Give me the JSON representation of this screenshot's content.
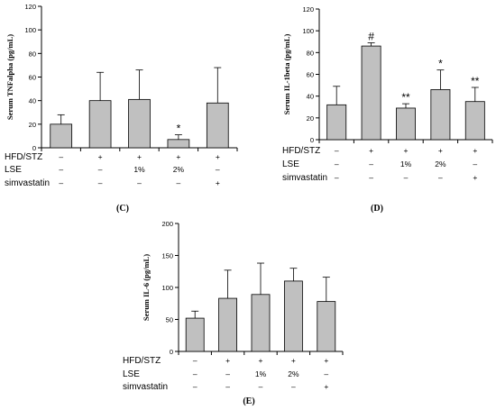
{
  "legend_rows": [
    {
      "label": "HFD/STZ",
      "cells": [
        "–",
        "+",
        "+",
        "+",
        "+"
      ]
    },
    {
      "label": "LSE",
      "cells": [
        "–",
        "–",
        "1%",
        "2%",
        "–"
      ]
    },
    {
      "label": "simvastatin",
      "cells": [
        "–",
        "–",
        "–",
        "–",
        "+"
      ]
    }
  ],
  "colors": {
    "bar_fill": "#c0c0c0",
    "axis": "#000000"
  },
  "chart_data": [
    {
      "type": "bar",
      "panel_label": "(C)",
      "ylabel": "Serum TNFalpha (pg/mL)",
      "ylim": [
        0,
        120
      ],
      "yticks": [
        0,
        20,
        40,
        60,
        80,
        100,
        120
      ],
      "values": [
        20,
        40,
        41,
        7,
        38
      ],
      "errors": [
        8,
        24,
        25,
        4,
        30
      ],
      "annotations": [
        "",
        "",
        "",
        "*",
        ""
      ]
    },
    {
      "type": "bar",
      "panel_label": "(D)",
      "ylabel": "Serum IL-1beta (pg/mL)",
      "ylim": [
        0,
        120
      ],
      "yticks": [
        0,
        20,
        40,
        60,
        80,
        100,
        120
      ],
      "values": [
        32,
        86,
        29,
        46,
        35
      ],
      "errors": [
        17,
        3,
        4,
        18,
        13
      ],
      "annotations": [
        "",
        "#",
        "**",
        "*",
        "**"
      ]
    },
    {
      "type": "bar",
      "panel_label": "(E)",
      "ylabel": "Serum IL-6 (pg/mL)",
      "ylim": [
        0,
        200
      ],
      "yticks": [
        0,
        50,
        100,
        150,
        200
      ],
      "values": [
        52,
        83,
        89,
        110,
        78
      ],
      "errors": [
        11,
        44,
        49,
        20,
        38
      ],
      "annotations": [
        "",
        "",
        "",
        "",
        ""
      ]
    }
  ]
}
